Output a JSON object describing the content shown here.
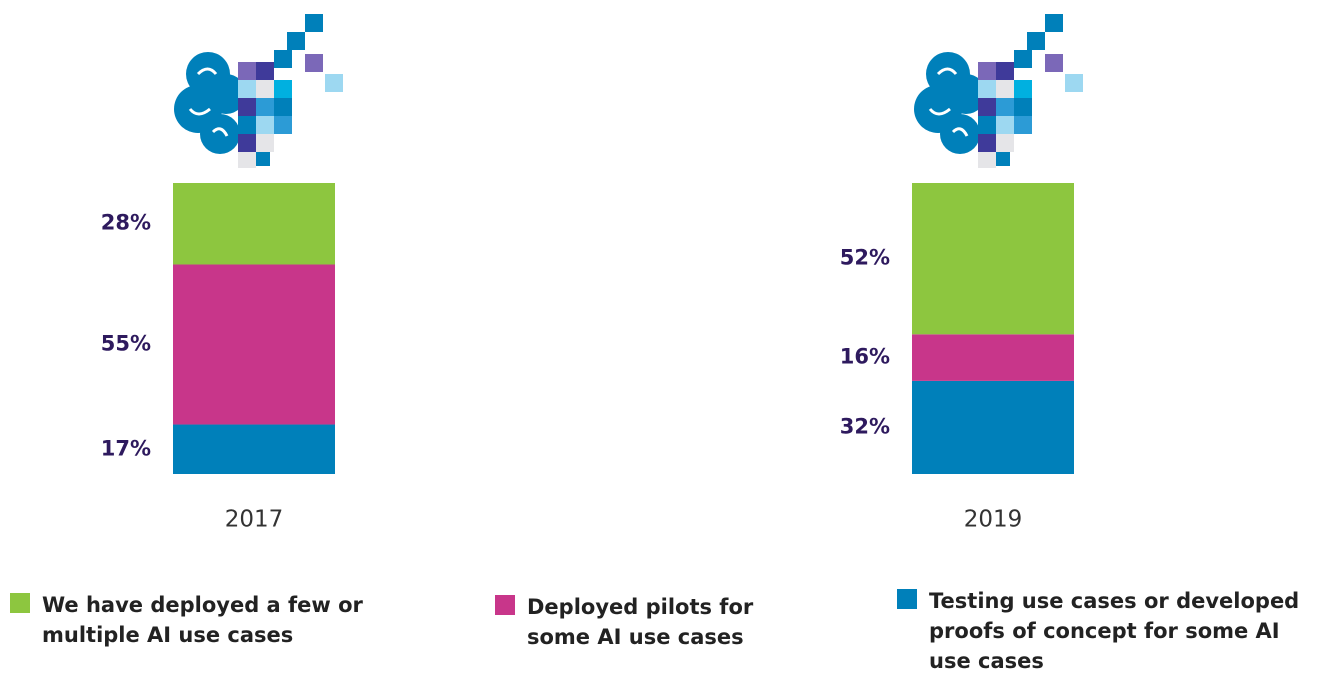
{
  "chart_data": {
    "type": "stacked-bar",
    "categories": [
      "2017",
      "2019"
    ],
    "series": [
      {
        "name": "We have deployed a few or multiple AI use cases",
        "color": "#8dc63f",
        "values": [
          28,
          52
        ],
        "value_labels": [
          "28%",
          "52%"
        ]
      },
      {
        "name": "Deployed pilots for some AI use cases",
        "color": "#c8368a",
        "values": [
          55,
          16
        ],
        "value_labels": [
          "55%",
          "16%"
        ]
      },
      {
        "name": "Testing use cases or developed proofs of concept for some AI use cases",
        "color": "#0080ba",
        "values": [
          17,
          32
        ],
        "value_labels": [
          "17%",
          "32%"
        ]
      }
    ]
  }
}
